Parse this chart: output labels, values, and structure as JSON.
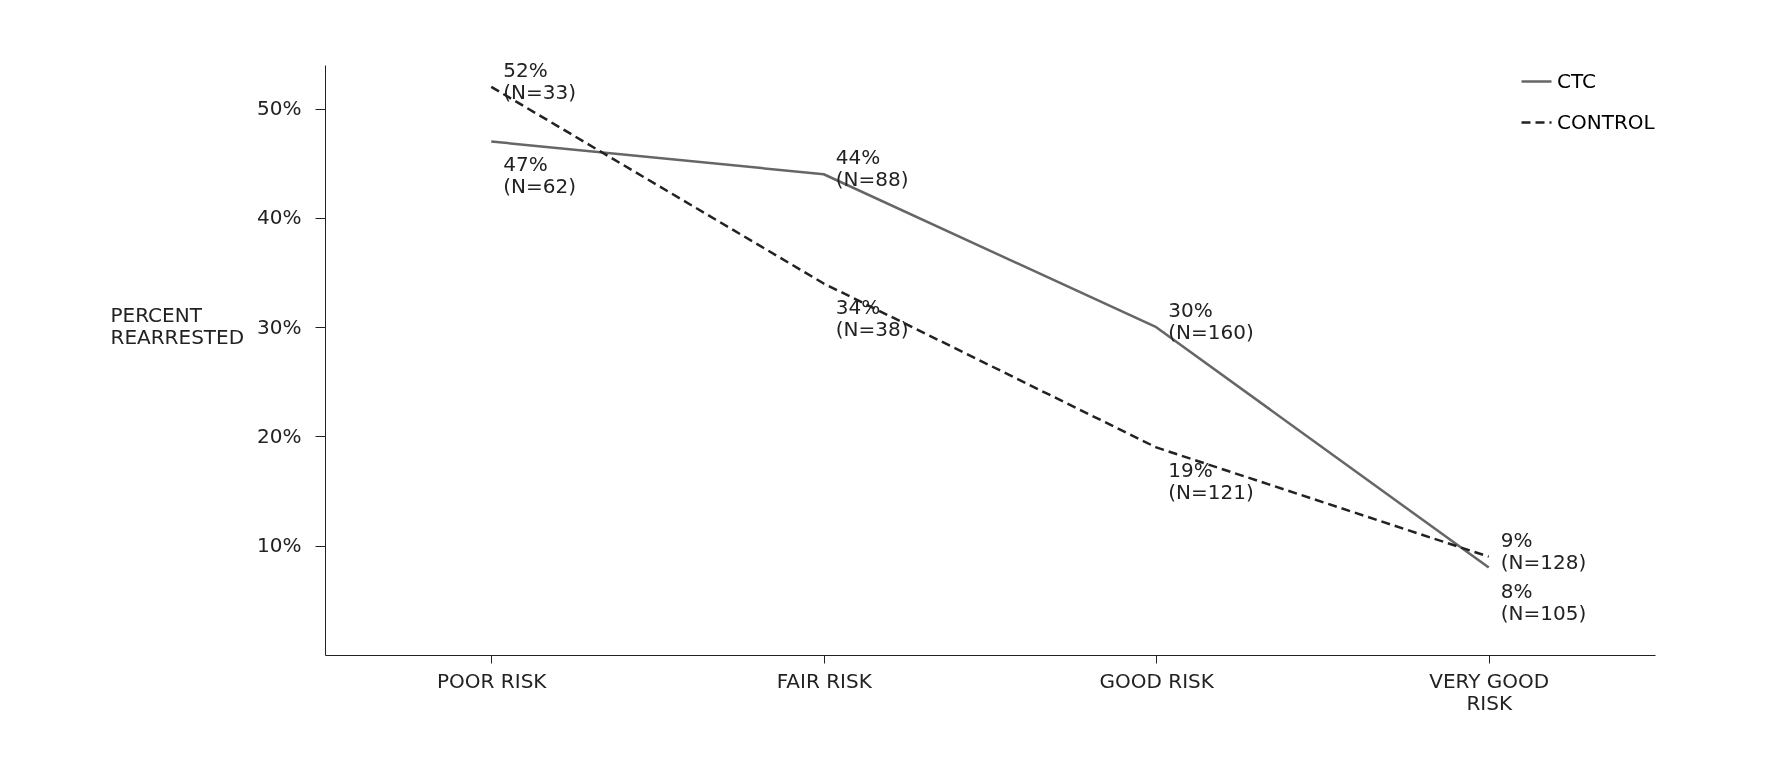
{
  "chart_data": {
    "type": "line",
    "ylabel": "PERCENT REARRESTED",
    "categories": [
      "POOR RISK",
      "FAIR RISK",
      "GOOD RISK",
      "VERY GOOD RISK"
    ],
    "series": [
      {
        "name": "CTC",
        "color": "#666666",
        "line_style": "solid",
        "values": [
          47,
          44,
          30,
          8
        ],
        "value_labels": [
          "47%\n(N=62)",
          "44%\n(N=88)",
          "30%\n(N=160)",
          "8%\n(N=105)"
        ]
      },
      {
        "name": "CONTROL",
        "color": "#222222",
        "line_style": "dashed",
        "values": [
          52,
          34,
          19,
          9
        ],
        "value_labels": [
          "52%\n(N=33)",
          "34%\n(N=38)",
          "19%\n(N=121)",
          "9%\n(N=128)"
        ]
      }
    ],
    "ylim": [
      0,
      54
    ],
    "yticks": [
      {
        "value": 10,
        "label": "10%"
      },
      {
        "value": 20,
        "label": "20%"
      },
      {
        "value": 30,
        "label": "30%"
      },
      {
        "value": 40,
        "label": "40%"
      },
      {
        "value": 50,
        "label": "50%"
      }
    ],
    "grid": false,
    "legend": "top right",
    "marker": "none"
  }
}
